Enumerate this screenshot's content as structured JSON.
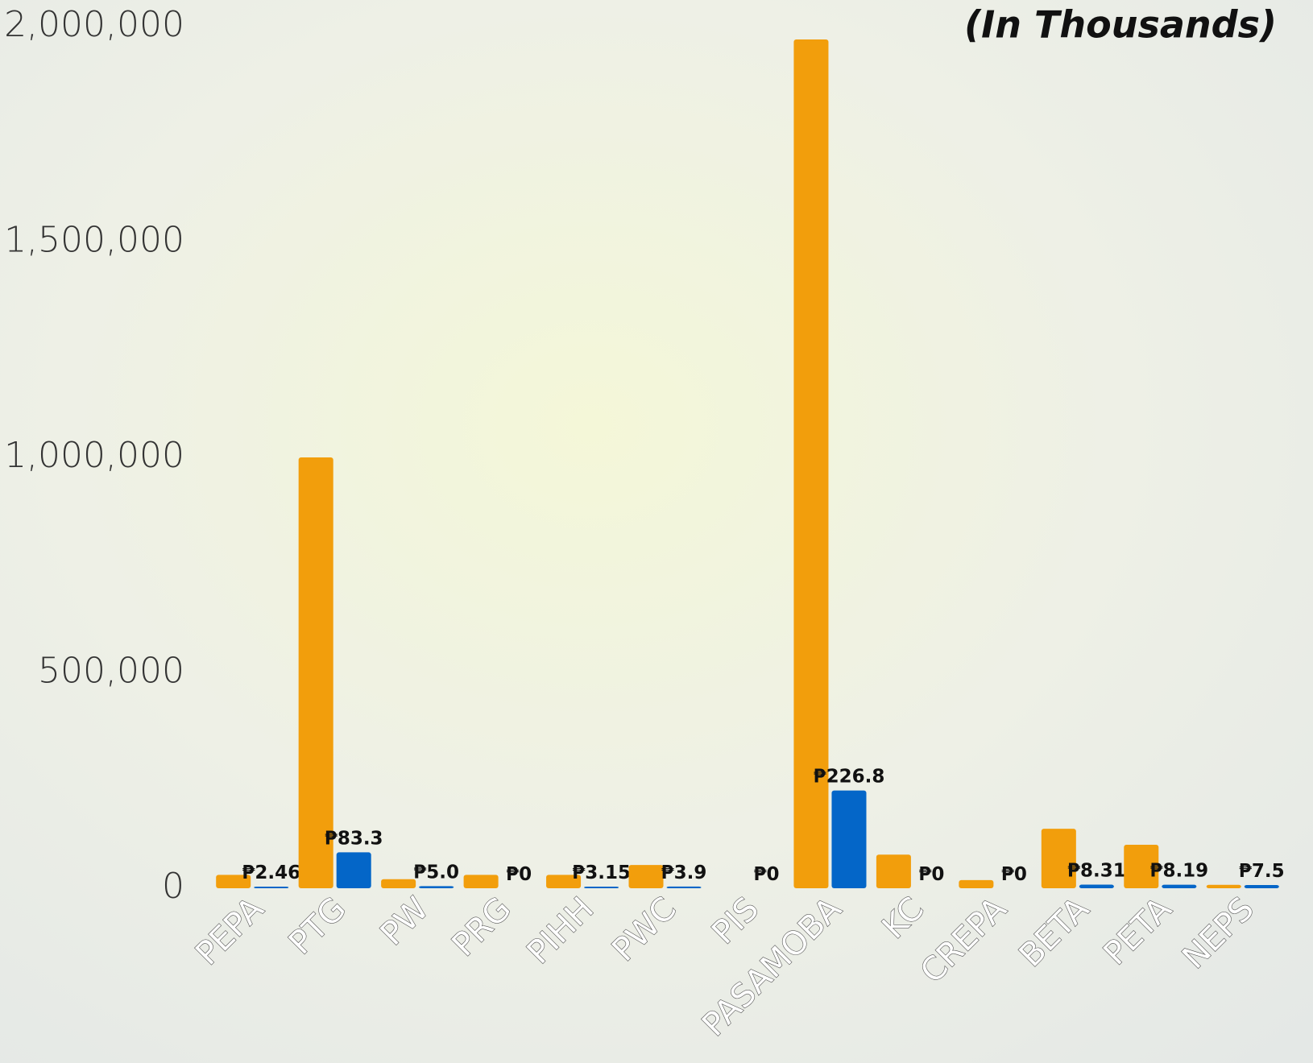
{
  "chart_data": {
    "type": "bar",
    "title": "(In Thousands)",
    "categories": [
      "PEPA",
      "PTG",
      "PW",
      "PRG",
      "PIHH",
      "PWC",
      "PIS",
      "PASAMOBA",
      "KC",
      "CREPA",
      "BETA",
      "PETA",
      "NEPS"
    ],
    "series": [
      {
        "color": "#f29e0c",
        "values": [
          31000,
          1000000,
          21000,
          31000,
          31000,
          54000,
          0,
          1970000,
          78000,
          19000,
          138000,
          101000,
          8000
        ]
      },
      {
        "color": "#0466c8",
        "values": [
          2460,
          83300,
          5000,
          0,
          3150,
          3900,
          0,
          226800,
          0,
          0,
          8310,
          8190,
          7500
        ],
        "value_labels": [
          "₱2.46",
          "₱83.3",
          "₱5.0",
          "₱0",
          "₱3.15",
          "₱3.9",
          "₱0",
          "₱226.8",
          "₱0",
          "₱0",
          "₱8.31",
          "₱8.19",
          "₱7.5"
        ]
      }
    ],
    "ylim": [
      0,
      2000000
    ],
    "yticks": [
      {
        "value": 0,
        "label": "0"
      },
      {
        "value": 500000,
        "label": "500,000"
      },
      {
        "value": 1000000,
        "label": "1,000,000"
      },
      {
        "value": 1500000,
        "label": "1,500,000"
      },
      {
        "value": 2000000,
        "label": "2,000,000"
      }
    ]
  }
}
